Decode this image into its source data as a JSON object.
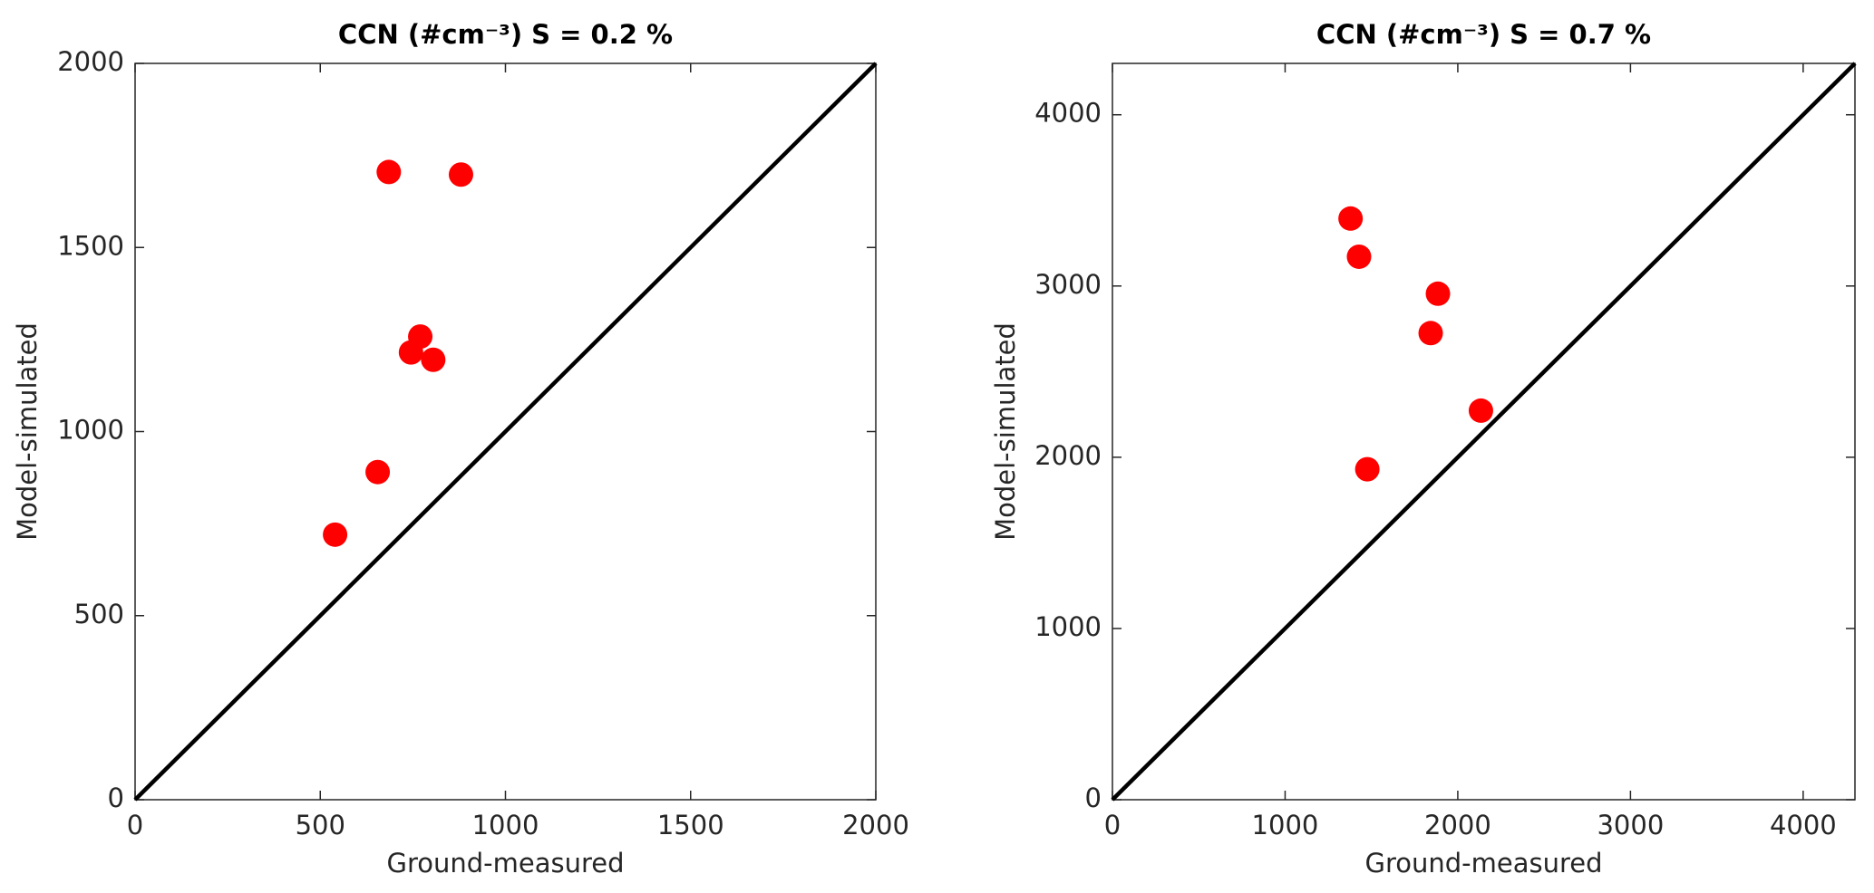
{
  "chart_data": [
    {
      "type": "scatter",
      "title": "CCN (#cm⁻³) S = 0.2 %",
      "xlabel": "Ground-measured",
      "ylabel": "Model-simulated",
      "series": [
        {
          "color": "#ff0000",
          "x": [
            685,
            880,
            770,
            745,
            805,
            655,
            540
          ],
          "values": [
            1705,
            1698,
            1258,
            1215,
            1195,
            890,
            720
          ]
        }
      ],
      "xlim": [
        0,
        2000
      ],
      "ylim": [
        0,
        2000
      ],
      "xticks": [
        0,
        500,
        1000,
        1500,
        2000
      ],
      "yticks": [
        0,
        500,
        1000,
        1500,
        2000
      ],
      "grid": false
    },
    {
      "type": "scatter",
      "title": "CCN (#cm⁻³) S = 0.7 %",
      "xlabel": "Ground-measured",
      "ylabel": "Model-simulated",
      "series": [
        {
          "color": "#ff0000",
          "x": [
            1379,
            1428,
            1885,
            1843,
            2134,
            1476
          ],
          "values": [
            3394,
            3171,
            2955,
            2725,
            2272,
            1930
          ]
        }
      ],
      "xlim": [
        0,
        4300
      ],
      "ylim": [
        0,
        4300
      ],
      "xticks": [
        0,
        1000,
        2000,
        3000,
        4000
      ],
      "yticks": [
        0,
        1000,
        2000,
        3000,
        4000
      ],
      "grid": false
    }
  ]
}
